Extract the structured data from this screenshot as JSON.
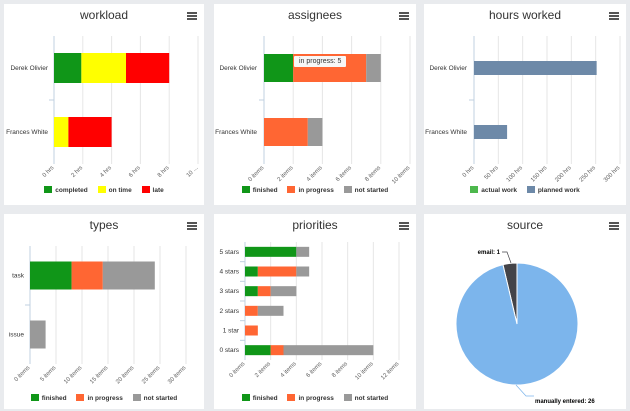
{
  "colors": {
    "finished": "#109618",
    "on_time": "#ffff00",
    "late": "#ff0000",
    "in_progress": "#ff6633",
    "not_started": "#999999",
    "actual_work": "#4db84d",
    "planned_work": "#6d89a8",
    "manually_entered": "#7cb5ec",
    "email": "#434348"
  },
  "panels": {
    "workload": {
      "title": "workload",
      "legend": [
        "completed",
        "on time",
        "late"
      ]
    },
    "assignees": {
      "title": "assignees",
      "legend": [
        "finished",
        "in progress",
        "not started"
      ],
      "tooltip": "in progress: 5"
    },
    "hours": {
      "title": "hours worked",
      "legend": [
        "actual work",
        "planned work"
      ]
    },
    "types": {
      "title": "types",
      "legend": [
        "finished",
        "in progress",
        "not started"
      ]
    },
    "priorities": {
      "title": "priorities",
      "legend": [
        "finished",
        "in progress",
        "not started"
      ]
    },
    "source": {
      "title": "source"
    }
  },
  "chart_data": [
    {
      "id": "workload",
      "type": "bar",
      "orientation": "horizontal",
      "stacked": true,
      "title": "workload",
      "categories": [
        "Derek Olivier",
        "Frances White"
      ],
      "series": [
        {
          "name": "completed",
          "values": [
            1.9,
            0
          ]
        },
        {
          "name": "on time",
          "values": [
            3.1,
            1.0
          ]
        },
        {
          "name": "late",
          "values": [
            3.0,
            3.0
          ]
        }
      ],
      "xlim": [
        0,
        10
      ],
      "tick_labels": [
        "0 hrs",
        "2 hrs",
        "4 hrs",
        "6 hrs",
        "8 hrs",
        "10 ..."
      ]
    },
    {
      "id": "assignees",
      "type": "bar",
      "orientation": "horizontal",
      "stacked": true,
      "title": "assignees",
      "categories": [
        "Derek Olivier",
        "Frances White"
      ],
      "series": [
        {
          "name": "finished",
          "values": [
            2,
            0
          ]
        },
        {
          "name": "in progress",
          "values": [
            5,
            3
          ]
        },
        {
          "name": "not started",
          "values": [
            1,
            1
          ]
        }
      ],
      "xlim": [
        0,
        10
      ],
      "tick_labels": [
        "0 items",
        "2 items",
        "4 items",
        "6 items",
        "8 items",
        "10 items"
      ]
    },
    {
      "id": "hours",
      "type": "bar",
      "orientation": "horizontal",
      "title": "hours worked",
      "categories": [
        "Derek Olivier",
        "Frances White"
      ],
      "series": [
        {
          "name": "actual work",
          "values": [
            0,
            0
          ]
        },
        {
          "name": "planned work",
          "values": [
            252,
            68
          ]
        }
      ],
      "xlim": [
        0,
        300
      ],
      "tick_labels": [
        "0 hrs",
        "50 hrs",
        "100 hrs",
        "150 hrs",
        "200 hrs",
        "250 hrs",
        "300 hrs"
      ]
    },
    {
      "id": "types",
      "type": "bar",
      "orientation": "horizontal",
      "stacked": true,
      "title": "types",
      "categories": [
        "task",
        "issue"
      ],
      "series": [
        {
          "name": "finished",
          "values": [
            8,
            0
          ]
        },
        {
          "name": "in progress",
          "values": [
            6,
            0
          ]
        },
        {
          "name": "not started",
          "values": [
            10,
            3
          ]
        }
      ],
      "xlim": [
        0,
        30
      ],
      "tick_labels": [
        "0 items",
        "5 items",
        "10 items",
        "15 items",
        "20 items",
        "25 items",
        "30 items"
      ]
    },
    {
      "id": "priorities",
      "type": "bar",
      "orientation": "horizontal",
      "stacked": true,
      "title": "priorities",
      "categories": [
        "5 stars",
        "4 stars",
        "3 stars",
        "2 stars",
        "1 star",
        "0 stars"
      ],
      "series": [
        {
          "name": "finished",
          "values": [
            4,
            1,
            1,
            0,
            0,
            2
          ]
        },
        {
          "name": "in progress",
          "values": [
            0,
            3,
            1,
            1,
            1,
            1
          ]
        },
        {
          "name": "not started",
          "values": [
            1,
            1,
            2,
            2,
            0,
            7
          ]
        }
      ],
      "xlim": [
        0,
        12
      ],
      "tick_labels": [
        "0 items",
        "2 items",
        "4 items",
        "6 items",
        "8 items",
        "10 items",
        "12 items"
      ]
    },
    {
      "id": "source",
      "type": "pie",
      "title": "source",
      "slices": [
        {
          "name": "manually entered",
          "value": 26,
          "label": "manually entered: 26"
        },
        {
          "name": "email",
          "value": 1,
          "label": "email: 1"
        }
      ]
    }
  ]
}
